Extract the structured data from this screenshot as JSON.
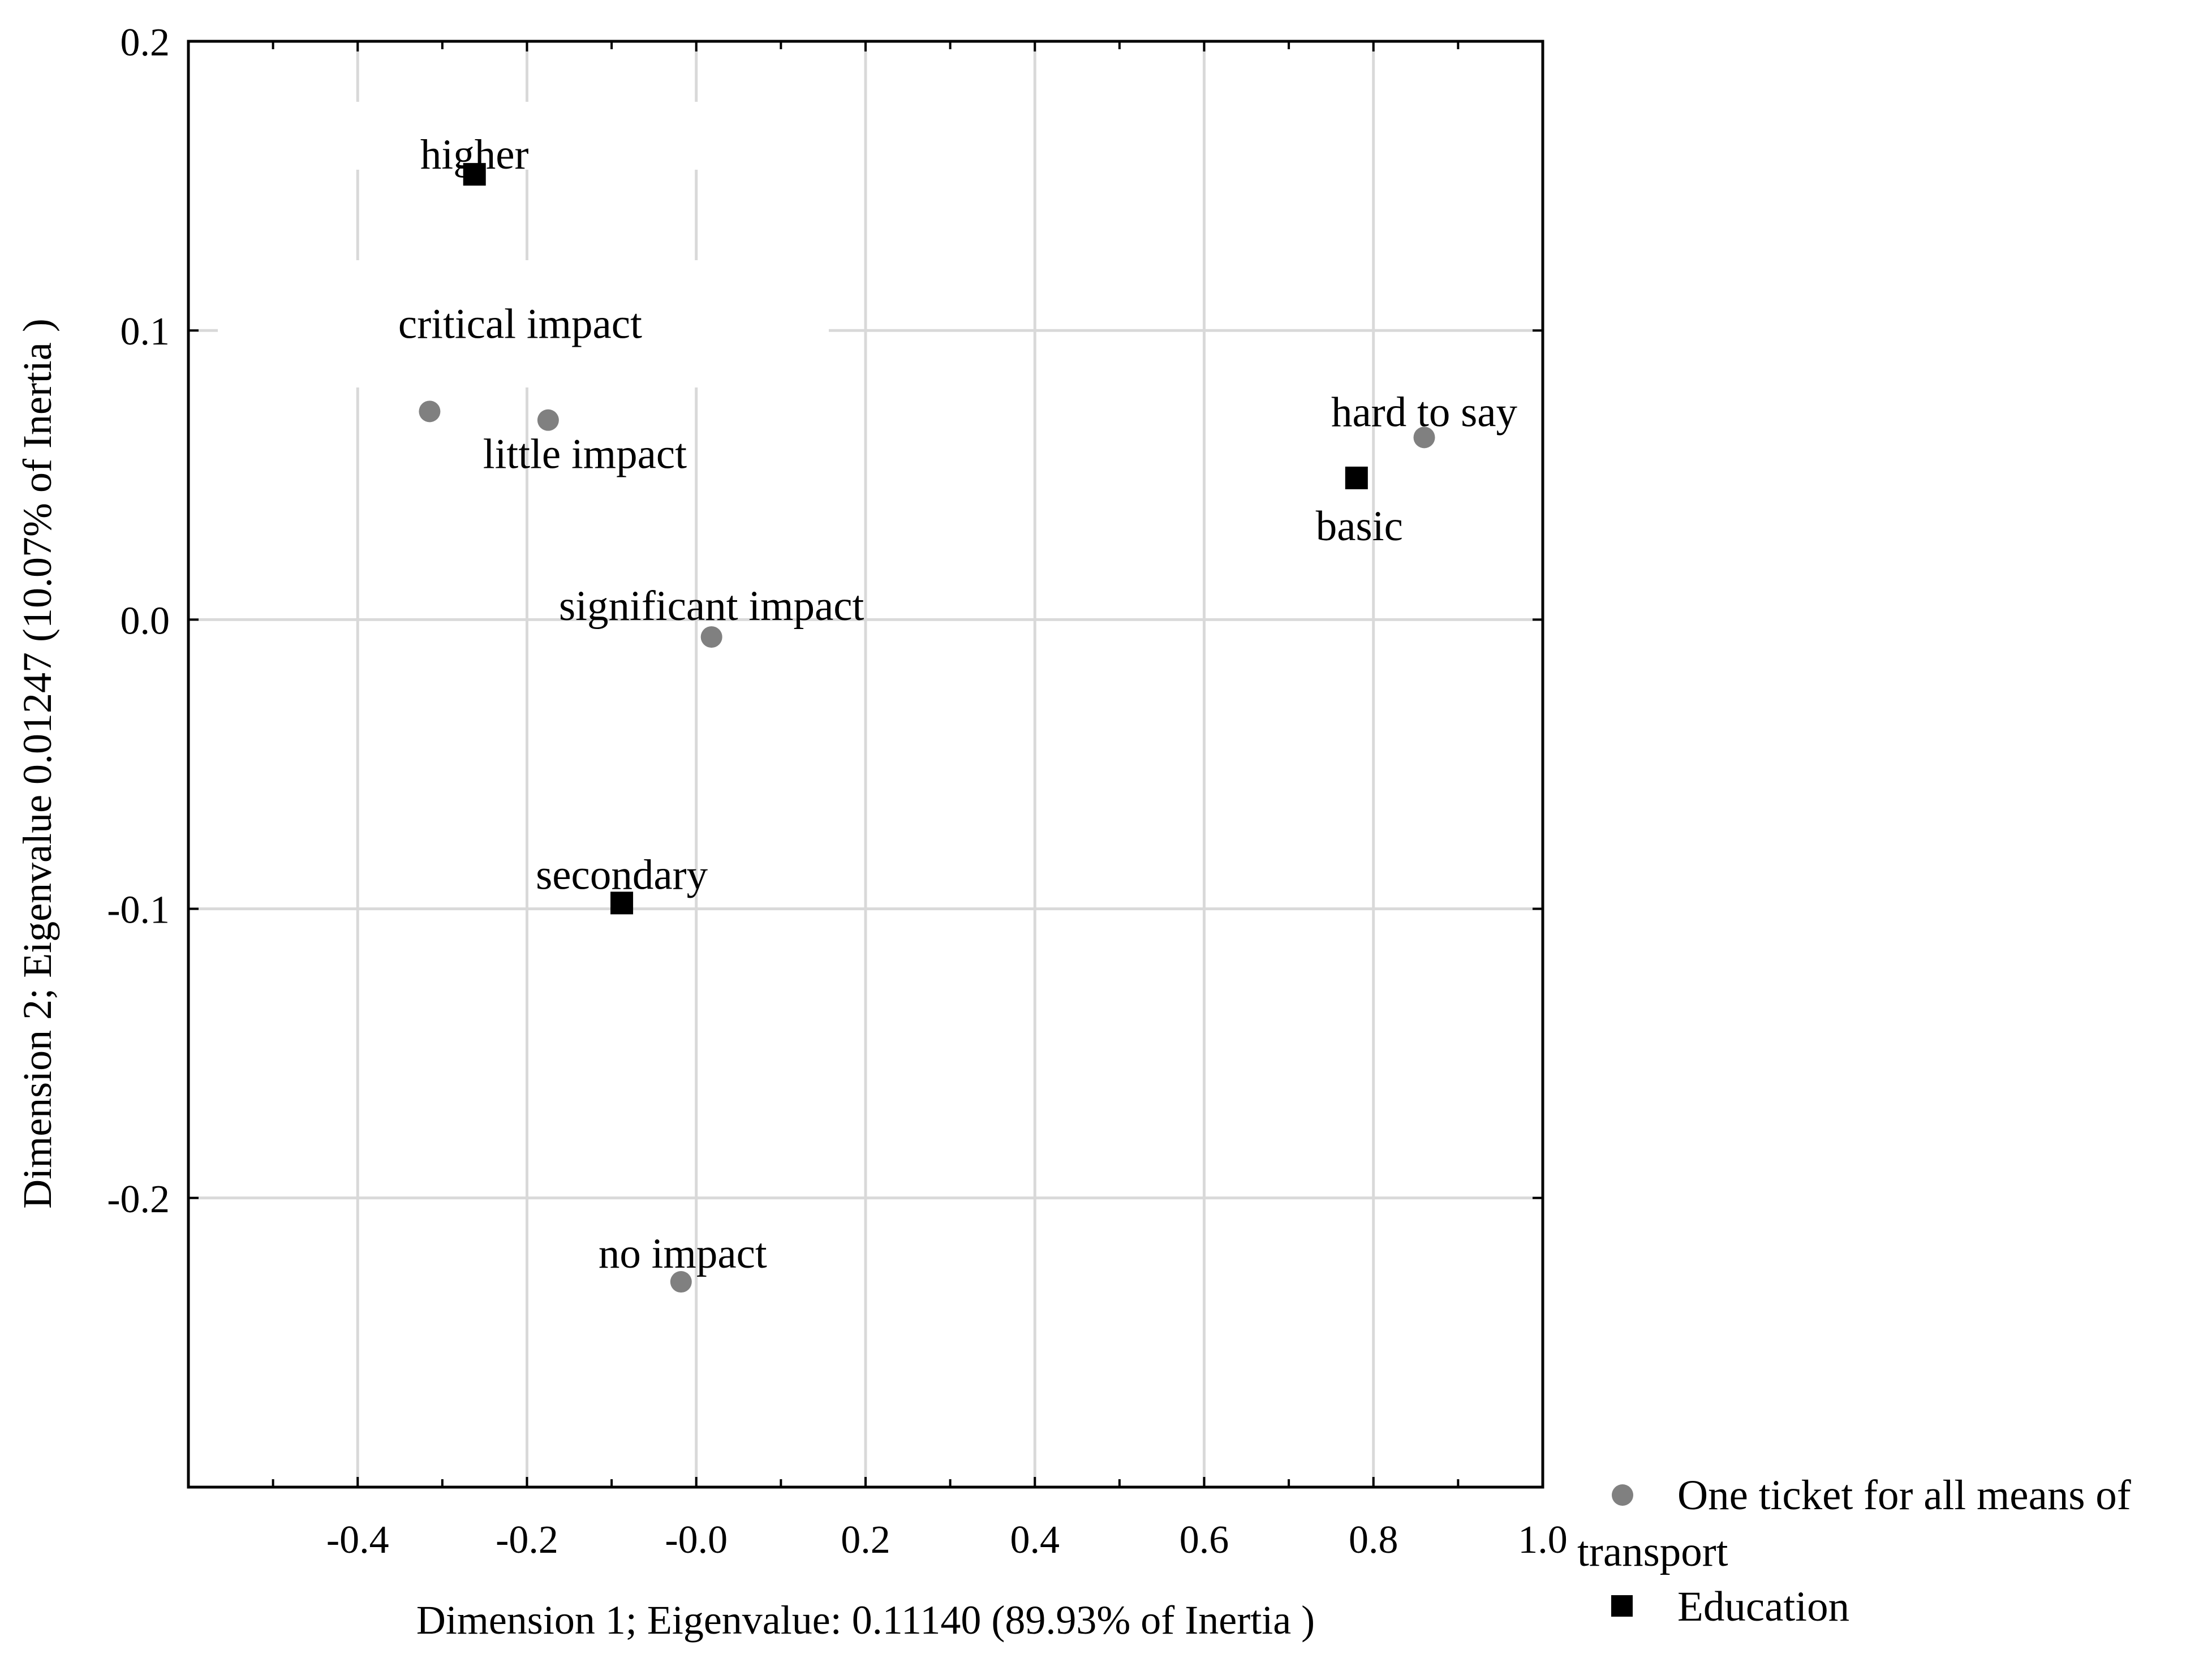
{
  "chart_data": {
    "type": "scatter",
    "title": "",
    "xlabel": "Dimension 1; Eigenvalue:  0.11140 (89.93% of Inertia )",
    "ylabel": "Dimension 2; Eigenvalue  0.01247 (10.07% of Inertia )",
    "xlim": [
      -0.6,
      1.0
    ],
    "ylim": [
      -0.3,
      0.2
    ],
    "x_ticks": [
      -0.4,
      -0.2,
      0.0,
      0.2,
      0.4,
      0.6,
      0.8,
      1.0
    ],
    "x_tick_labels": [
      "-0.4",
      "-0.2",
      "-0.0",
      "0.2",
      "0.4",
      "0.6",
      "0.8",
      "1.0"
    ],
    "y_ticks": [
      0.2,
      0.1,
      0.0,
      -0.1,
      -0.2
    ],
    "y_tick_labels": [
      "0.2",
      "0.1",
      "0.0",
      "-0.1",
      "-0.2"
    ],
    "grid": true,
    "legend_position": "bottom-right",
    "series": [
      {
        "name": "One ticket for all means of transport",
        "legend_line1": "One ticket for all means of",
        "legend_line2": "transport",
        "marker": "circle",
        "color": "#808080",
        "points": [
          {
            "label": "critical impact",
            "x": -0.315,
            "y": 0.072
          },
          {
            "label": "little impact",
            "x": -0.175,
            "y": 0.069
          },
          {
            "label": "significant impact",
            "x": 0.018,
            "y": -0.006
          },
          {
            "label": "no impact",
            "x": -0.018,
            "y": -0.229
          },
          {
            "label": "hard to say",
            "x": 0.86,
            "y": 0.063
          }
        ]
      },
      {
        "name": "Education",
        "legend_line1": "Education",
        "marker": "square",
        "color": "#000000",
        "points": [
          {
            "label": "higher",
            "x": -0.262,
            "y": 0.154
          },
          {
            "label": "secondary",
            "x": -0.088,
            "y": -0.098
          },
          {
            "label": "basic",
            "x": 0.78,
            "y": 0.049
          }
        ]
      }
    ]
  }
}
